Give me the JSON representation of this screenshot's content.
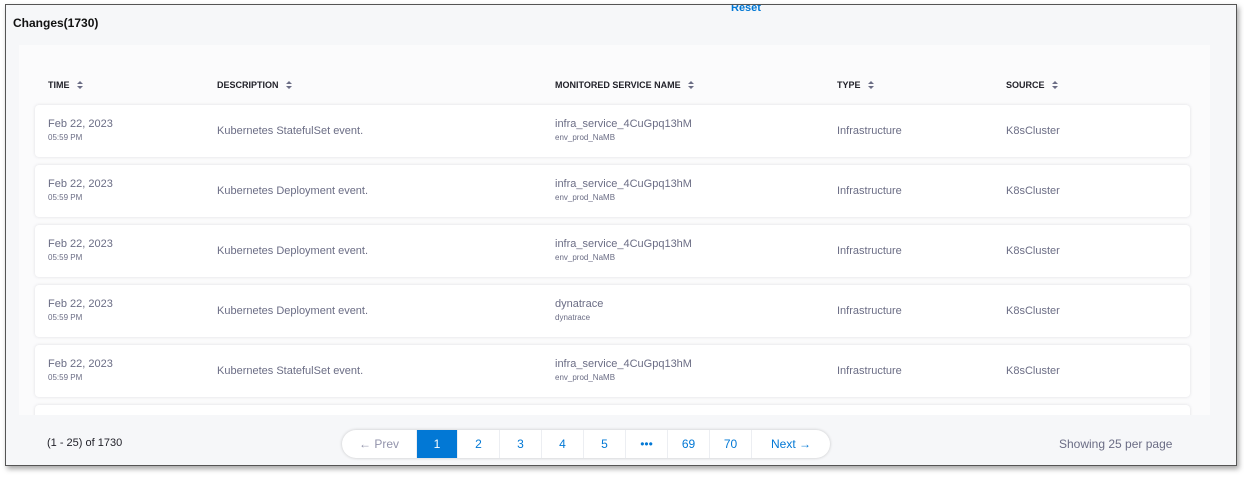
{
  "header": {
    "title": "Changes(1730)",
    "reset": "Reset"
  },
  "table": {
    "columns": [
      "TIME",
      "DESCRIPTION",
      "MONITORED SERVICE NAME",
      "TYPE",
      "SOURCE"
    ],
    "rows": [
      {
        "date": "Feb 22, 2023",
        "time": "05:59 PM",
        "description": "Kubernetes StatefulSet event.",
        "service": "infra_service_4CuGpq13hM",
        "environment": "env_prod_NaMB",
        "type": "Infrastructure",
        "source": "K8sCluster"
      },
      {
        "date": "Feb 22, 2023",
        "time": "05:59 PM",
        "description": "Kubernetes Deployment event.",
        "service": "infra_service_4CuGpq13hM",
        "environment": "env_prod_NaMB",
        "type": "Infrastructure",
        "source": "K8sCluster"
      },
      {
        "date": "Feb 22, 2023",
        "time": "05:59 PM",
        "description": "Kubernetes Deployment event.",
        "service": "infra_service_4CuGpq13hM",
        "environment": "env_prod_NaMB",
        "type": "Infrastructure",
        "source": "K8sCluster"
      },
      {
        "date": "Feb 22, 2023",
        "time": "05:59 PM",
        "description": "Kubernetes Deployment event.",
        "service": "dynatrace",
        "environment": "dynatrace",
        "type": "Infrastructure",
        "source": "K8sCluster"
      },
      {
        "date": "Feb 22, 2023",
        "time": "05:59 PM",
        "description": "Kubernetes StatefulSet event.",
        "service": "infra_service_4CuGpq13hM",
        "environment": "env_prod_NaMB",
        "type": "Infrastructure",
        "source": "K8sCluster"
      }
    ]
  },
  "pagination": {
    "range": "(1 - 25) of 1730",
    "prev": "← Prev",
    "pages": [
      "1",
      "2",
      "3",
      "4",
      "5",
      "•••",
      "69",
      "70"
    ],
    "next": "Next →",
    "per_page": "Showing 25 per page"
  }
}
